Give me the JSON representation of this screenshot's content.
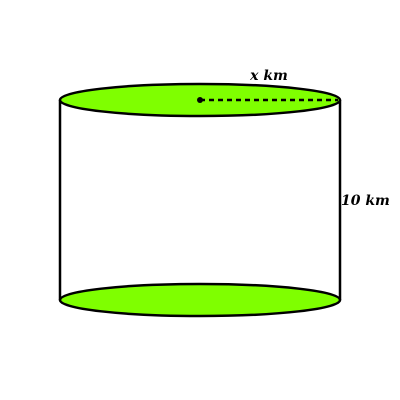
{
  "diagram": {
    "shape": "cylinder",
    "radius_label": "x km",
    "height_label": "10 km",
    "colors": {
      "base_fill": "#7fff00",
      "outline": "#000000",
      "background": "#ffffff"
    }
  }
}
